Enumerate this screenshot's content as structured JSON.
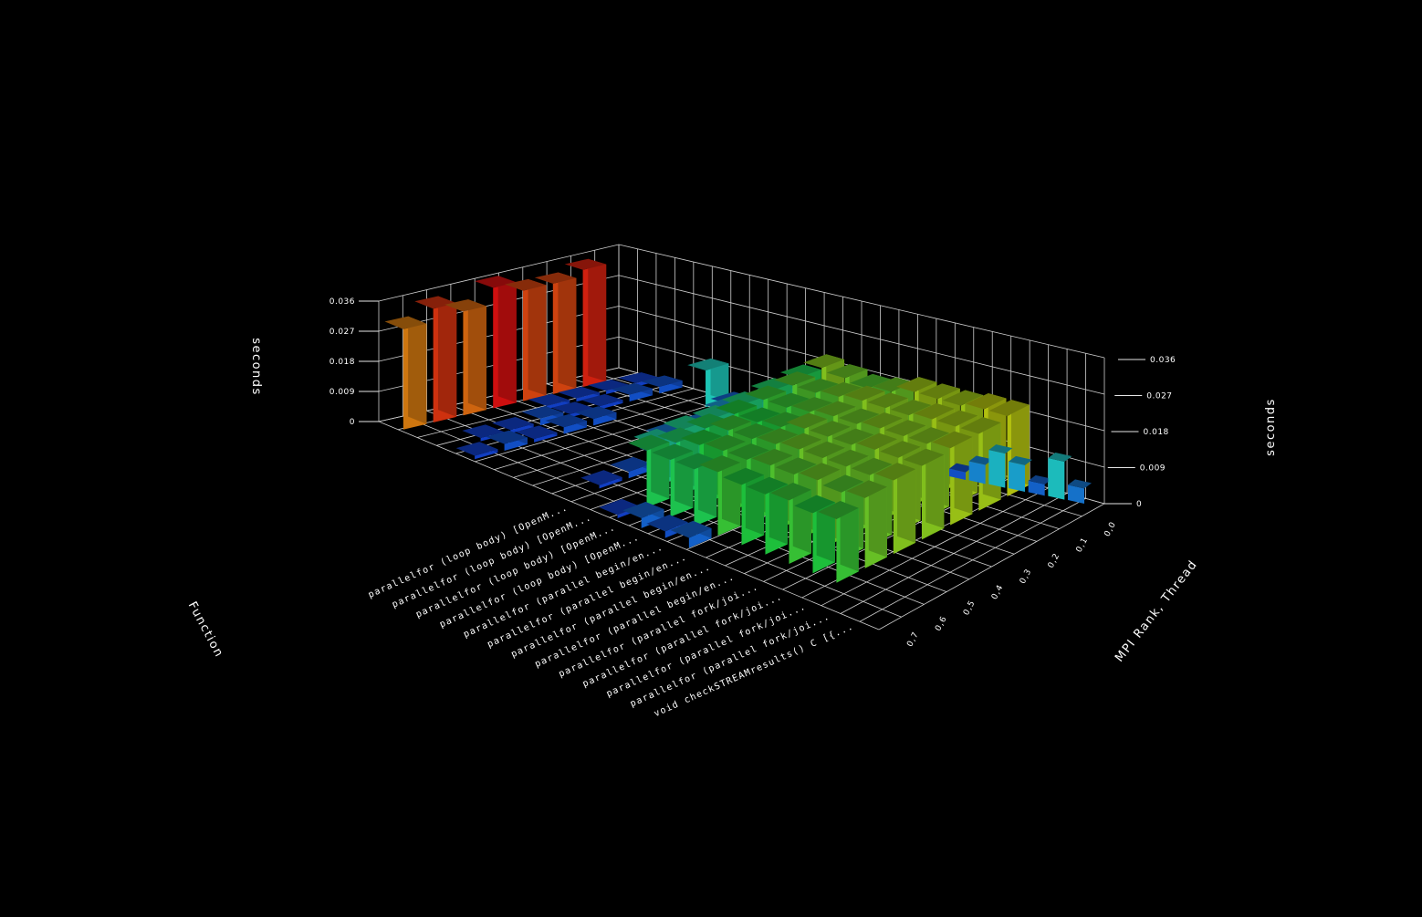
{
  "chart_data": {
    "type": "bar3d",
    "z_axis_label": "seconds",
    "x_axis_label": "MPI Rank, Thread",
    "y_axis_label": "Function",
    "zlim": [
      0,
      0.036
    ],
    "z_ticks": [
      "0",
      "0.009",
      "0.018",
      "0.027",
      "0.036"
    ],
    "threads": [
      "0,0",
      "0,1",
      "0,2",
      "0,3",
      "0,4",
      "0,5",
      "0,6",
      "0,7"
    ],
    "thread_tick_labels": [
      "0,0",
      "0,1",
      "0,2",
      "0,3",
      "0,4",
      "0,5",
      "0,6",
      "0,7"
    ],
    "functions": [
      "",
      "",
      "",
      "",
      "",
      "",
      "",
      "",
      "parallelfor (loop body) [OpenM...",
      "parallelfor (loop body) [OpenM...",
      "parallelfor (loop body) [OpenM...",
      "parallelfor (loop body) [OpenM...",
      "parallelfor (parallel begin/en...",
      "parallelfor (parallel begin/en...",
      "parallelfor (parallel begin/en...",
      "parallelfor (parallel begin/en...",
      "parallelfor (parallel fork/joi...",
      "parallelfor (parallel fork/joi...",
      "parallelfor (parallel fork/joi...",
      "parallelfor (parallel fork/joi...",
      "void checkSTREAMresults() C [{..."
    ],
    "series": [
      {
        "function_index": 0,
        "values": [
          0.03,
          0.034,
          0.031,
          0.036,
          0.033,
          0.033,
          0.035,
          0.0
        ]
      },
      {
        "function_index": 1,
        "values": [
          0.0,
          0.0,
          0.0,
          0.0,
          0.001,
          0.001,
          0.001,
          0.001
        ]
      },
      {
        "function_index": 2,
        "values": [
          0.0,
          0.001,
          0.001,
          0.002,
          0.001,
          0.001,
          0.002,
          0.002
        ]
      },
      {
        "function_index": 3,
        "values": [
          0.001,
          0.002,
          0.001,
          0.002,
          0.002,
          0.0,
          0.0,
          0.0
        ]
      },
      {
        "function_index": 4,
        "values": [
          0.0,
          0.0,
          0.0,
          0.0,
          0.0,
          0.0,
          0.0,
          0.011
        ]
      },
      {
        "function_index": 5,
        "values": [
          0.0,
          0.0,
          0.0,
          0.0,
          0.0,
          0.0,
          0.0,
          0.003
        ]
      },
      {
        "function_index": 6,
        "values": [
          0.0,
          0.0,
          0.0,
          0.0,
          0.004,
          0.004,
          0.006,
          0.004
        ]
      },
      {
        "function_index": 7,
        "values": [
          0.0,
          0.001,
          0.002,
          0.004,
          0.006,
          0.008,
          0.009,
          0.01
        ]
      },
      {
        "function_index": 8,
        "values": [
          0.0,
          0.0,
          0.013,
          0.014,
          0.014,
          0.015,
          0.016,
          0.017
        ]
      },
      {
        "function_index": 9,
        "values": [
          0.001,
          0.017,
          0.016,
          0.017,
          0.018,
          0.019,
          0.02,
          0.022
        ]
      },
      {
        "function_index": 10,
        "values": [
          0.003,
          0.017,
          0.018,
          0.019,
          0.018,
          0.019,
          0.02,
          0.021
        ]
      },
      {
        "function_index": 11,
        "values": [
          0.002,
          0.017,
          0.019,
          0.019,
          0.019,
          0.02,
          0.021,
          0.02
        ]
      },
      {
        "function_index": 12,
        "values": [
          0.003,
          0.019,
          0.019,
          0.02,
          0.021,
          0.021,
          0.022,
          0.021
        ]
      },
      {
        "function_index": 13,
        "values": [
          0.0,
          0.018,
          0.02,
          0.021,
          0.021,
          0.021,
          0.022,
          0.023
        ]
      },
      {
        "function_index": 14,
        "values": [
          0.0,
          0.018,
          0.02,
          0.021,
          0.021,
          0.022,
          0.022,
          0.023
        ]
      },
      {
        "function_index": 15,
        "values": [
          0.0,
          0.019,
          0.021,
          0.021,
          0.022,
          0.022,
          0.023,
          0.023
        ]
      },
      {
        "function_index": 16,
        "values": [
          0.0,
          0.018,
          0.02,
          0.021,
          0.022,
          0.022,
          0.023,
          0.024
        ]
      },
      {
        "function_index": 17,
        "values": [
          0.0,
          0.019,
          0.021,
          0.022,
          0.022,
          0.023,
          0.023,
          0.024
        ]
      },
      {
        "function_index": 18,
        "values": [
          0.0,
          0.0,
          0.0,
          0.0,
          0.0,
          0.0,
          0.0,
          0.0
        ]
      },
      {
        "function_index": 19,
        "values": [
          0.0,
          0.0,
          0.0,
          0.0,
          0.0,
          0.0,
          0.0,
          0.0
        ]
      },
      {
        "function_index": 20,
        "values": [
          0.0,
          0.0,
          0.0,
          0.0,
          0.0,
          0.0,
          0.0,
          0.0
        ]
      }
    ],
    "right_side_bars": [
      {
        "label": "0,0",
        "value": 0.002
      },
      {
        "label": "0,1",
        "value": 0.005
      },
      {
        "label": "0,2",
        "value": 0.009
      },
      {
        "label": "0,3",
        "value": 0.007
      },
      {
        "label": "0,4",
        "value": 0.003
      },
      {
        "label": "0,5",
        "value": 0.01
      },
      {
        "label": "0,6",
        "value": 0.004
      }
    ],
    "background": "#000000",
    "grid": true,
    "colormap": [
      "#1030d0",
      "#1aa0e0",
      "#20e0c0",
      "#20d040",
      "#c0d010",
      "#e08010",
      "#e01010"
    ]
  }
}
